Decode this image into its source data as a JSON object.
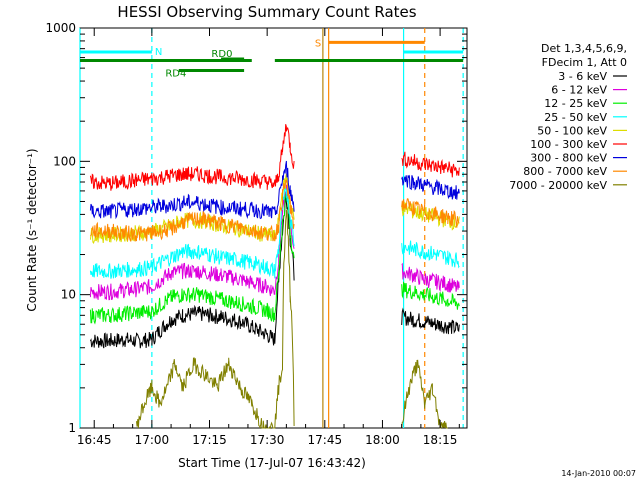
{
  "chart_data": {
    "type": "line",
    "title": "HESSI Observing Summary Count Rates",
    "xlabel": "Start Time (17-Jul-07 16:43:42)",
    "ylabel": "Count Rate (s⁻¹ detector⁻¹)",
    "ylog": true,
    "ylim": [
      1,
      1000
    ],
    "xlim_minutes": [
      -3.7,
      97
    ],
    "x_ticks": [
      {
        "min": 0,
        "label": "16:45"
      },
      {
        "min": 15,
        "label": "17:00"
      },
      {
        "min": 30,
        "label": "17:15"
      },
      {
        "min": 45,
        "label": "17:30"
      },
      {
        "min": 60,
        "label": "17:45"
      },
      {
        "min": 75,
        "label": "18:00"
      },
      {
        "min": 90,
        "label": "18:15"
      }
    ],
    "y_ticks": [
      {
        "v": 1,
        "label": "1"
      },
      {
        "v": 10,
        "label": "10"
      },
      {
        "v": 100,
        "label": "100"
      },
      {
        "v": 1000,
        "label": "1000"
      }
    ],
    "legend_header": [
      "Det 1,3,4,5,6,9,",
      "FDecim 1, Att 0"
    ],
    "legend_position": "right",
    "series": [
      {
        "name": "3 - 6 keV",
        "color": "#000000",
        "x": [
          -1,
          4,
          8,
          11,
          15,
          20,
          23,
          27,
          30,
          33,
          38,
          42,
          45,
          46,
          47,
          48,
          49,
          50,
          51,
          52,
          80,
          83,
          86,
          89,
          92,
          95
        ],
        "y": [
          4.5,
          4.5,
          4.6,
          4.5,
          4.6,
          6.5,
          7,
          7.2,
          7,
          6.8,
          6.3,
          5.5,
          5,
          4.8,
          4.6,
          12,
          30,
          55,
          26,
          14,
          6.8,
          6.5,
          6.3,
          6,
          5.8,
          5.5
        ]
      },
      {
        "name": "6 - 12 keV",
        "color": "#dd00dd",
        "x": [
          -1,
          4,
          8,
          11,
          15,
          20,
          23,
          27,
          30,
          33,
          38,
          42,
          45,
          46,
          47,
          48,
          49,
          50,
          51,
          52,
          80,
          83,
          86,
          89,
          92,
          95
        ],
        "y": [
          10.5,
          10.5,
          10.8,
          11,
          11.5,
          14.5,
          15,
          15,
          14.5,
          14,
          13,
          12,
          11.5,
          11,
          10.8,
          18,
          40,
          60,
          35,
          22,
          15,
          14,
          13,
          12.5,
          12,
          11
        ]
      },
      {
        "name": "12 - 25 keV",
        "color": "#00ee00",
        "x": [
          -1,
          4,
          8,
          11,
          15,
          20,
          23,
          27,
          30,
          33,
          38,
          42,
          45,
          46,
          47,
          48,
          49,
          50,
          51,
          52,
          80,
          83,
          86,
          89,
          92,
          95
        ],
        "y": [
          7,
          7,
          7.2,
          7.3,
          7.5,
          9.5,
          10,
          10,
          9.6,
          9.2,
          8.6,
          8,
          7.6,
          7.3,
          7.1,
          14,
          34,
          56,
          30,
          17,
          11,
          10.5,
          10,
          9.5,
          9,
          8.5
        ]
      },
      {
        "name": "25 - 50 keV",
        "color": "#00ffff",
        "x": [
          -1,
          4,
          8,
          11,
          15,
          20,
          23,
          27,
          30,
          33,
          38,
          42,
          45,
          46,
          47,
          48,
          49,
          50,
          51,
          52,
          80,
          83,
          86,
          89,
          92,
          95
        ],
        "y": [
          15,
          15,
          15.3,
          15.5,
          16,
          19,
          21,
          21,
          20,
          19,
          18,
          17,
          16,
          15.5,
          15,
          22,
          45,
          62,
          38,
          25,
          23,
          22,
          21,
          20,
          19,
          18
        ]
      },
      {
        "name": "50 - 100 keV",
        "color": "#dddd00",
        "x": [
          -1,
          4,
          8,
          11,
          15,
          20,
          23,
          27,
          30,
          33,
          38,
          42,
          45,
          46,
          47,
          48,
          49,
          50,
          51,
          52,
          80,
          83,
          86,
          89,
          92,
          95
        ],
        "y": [
          28,
          28,
          28.5,
          29,
          29.5,
          33,
          36,
          36,
          35,
          33,
          31,
          29,
          28,
          27.5,
          27,
          35,
          60,
          75,
          48,
          36,
          45,
          42,
          40,
          38,
          36,
          34
        ]
      },
      {
        "name": "100 - 300 keV",
        "color": "#ff0000",
        "x": [
          -1,
          4,
          8,
          11,
          15,
          20,
          23,
          27,
          30,
          33,
          38,
          42,
          45,
          46,
          47,
          48,
          49,
          50,
          51,
          52,
          80,
          83,
          86,
          89,
          92,
          95
        ],
        "y": [
          70,
          68,
          70,
          72,
          74,
          78,
          80,
          80,
          78,
          76,
          74,
          72,
          70,
          68,
          66,
          80,
          120,
          190,
          130,
          90,
          105,
          100,
          95,
          92,
          88,
          84
        ]
      },
      {
        "name": "300 - 800 keV",
        "color": "#0000dd",
        "x": [
          -1,
          4,
          8,
          11,
          15,
          20,
          23,
          27,
          30,
          33,
          38,
          42,
          45,
          46,
          47,
          48,
          49,
          50,
          51,
          52,
          80,
          83,
          86,
          89,
          92,
          95
        ],
        "y": [
          42,
          42,
          43,
          44,
          45,
          47,
          49,
          49,
          47,
          45,
          44,
          43,
          42,
          41,
          40,
          50,
          75,
          90,
          60,
          45,
          75,
          70,
          66,
          63,
          60,
          57
        ]
      },
      {
        "name": "800 - 7000 keV",
        "color": "#ff8800",
        "x": [
          -1,
          4,
          8,
          11,
          15,
          20,
          23,
          27,
          30,
          33,
          38,
          42,
          45,
          46,
          47,
          48,
          49,
          50,
          51,
          52,
          80,
          83,
          86,
          89,
          92,
          95
        ],
        "y": [
          30,
          30,
          29,
          28.5,
          29,
          31,
          35,
          37,
          36,
          34,
          32,
          30,
          29,
          28.5,
          28,
          33,
          55,
          70,
          45,
          33,
          48,
          45,
          42,
          40,
          38,
          36
        ]
      },
      {
        "name": "7000 - 20000 keV",
        "color": "#808000",
        "x": [
          11,
          13,
          15,
          17,
          19,
          21,
          23,
          26,
          29,
          32,
          35,
          38,
          41,
          44,
          47,
          49,
          50,
          51,
          52,
          80,
          82,
          84,
          86,
          88,
          90,
          92
        ],
        "y": [
          1,
          1.5,
          2,
          1.5,
          2,
          3,
          2,
          3,
          2.5,
          2,
          3,
          2,
          1.5,
          1,
          1,
          3,
          40,
          10,
          1,
          1,
          2,
          3,
          1.5,
          2,
          1,
          1
        ]
      }
    ],
    "interval_bars": [
      {
        "label": "N",
        "color": "#00ffff",
        "y": 660,
        "segments": [
          [
            -3.7,
            15
          ],
          [
            80.5,
            96
          ]
        ]
      },
      {
        "label": "S",
        "color": "#ff8800",
        "y": 780,
        "segments": [
          [
            61,
            86
          ]
        ]
      },
      {
        "label": "",
        "color": "#008800",
        "y": 570,
        "segments": [
          [
            -3.7,
            41
          ],
          [
            47,
            96
          ]
        ]
      },
      {
        "label": "RD0",
        "color": "#008800",
        "y": 585,
        "segments": [
          [
            33,
            39
          ]
        ]
      },
      {
        "label": "RD4",
        "color": "#008800",
        "y": 480,
        "segments": [
          [
            22,
            39
          ]
        ]
      }
    ],
    "vertical_markers": [
      {
        "min": -3.7,
        "color": "#00ffff",
        "style": "solid"
      },
      {
        "min": 15,
        "color": "#00ffff",
        "style": "dashed"
      },
      {
        "min": 59.5,
        "color": "#b8860b",
        "style": "solid"
      },
      {
        "min": 61,
        "color": "#ff8800",
        "style": "solid"
      },
      {
        "min": 80.5,
        "color": "#00ffff",
        "style": "solid"
      },
      {
        "min": 86,
        "color": "#ff8800",
        "style": "dashed"
      },
      {
        "min": 96,
        "color": "#00ffff",
        "style": "dashed"
      }
    ]
  },
  "footer": {
    "timestamp": "14-Jan-2010 00:07"
  }
}
